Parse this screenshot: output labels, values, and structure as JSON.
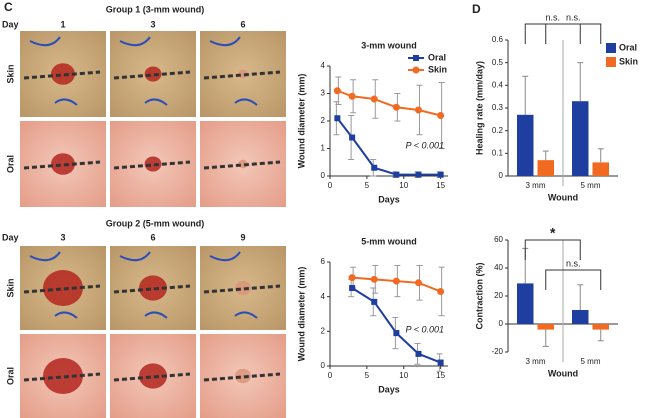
{
  "panel_labels": [
    "C",
    "D"
  ],
  "photo_panels": [
    {
      "title": "Group 1 (3-mm wound)",
      "day_label": "Day",
      "days": [
        "1",
        "3",
        "6"
      ],
      "rows": [
        "Skin",
        "Oral"
      ]
    },
    {
      "title": "Group 2 (5-mm wound)",
      "day_label": "Day",
      "days": [
        "3",
        "6",
        "9"
      ],
      "rows": [
        "Skin",
        "Oral"
      ]
    }
  ],
  "chart_data": [
    {
      "type": "line",
      "title": "3-mm wound",
      "x_label": "Days",
      "y_label": "Wound diameter (mm)",
      "x": [
        1,
        3,
        6,
        9,
        12,
        15
      ],
      "xlim": [
        0,
        16
      ],
      "xticks": [
        0,
        5,
        10,
        15
      ],
      "ylim": [
        0,
        4
      ],
      "yticks": [
        0,
        1,
        2,
        3,
        4
      ],
      "series": [
        {
          "name": "Oral",
          "color": "#1f3fa0",
          "marker": "square",
          "values": [
            2.1,
            1.4,
            0.3,
            0.05,
            0.05,
            0.05
          ],
          "errors": [
            0.6,
            0.8,
            0.3,
            0.1,
            0.1,
            0.1
          ]
        },
        {
          "name": "Skin",
          "color": "#f26a21",
          "marker": "circle",
          "values": [
            3.1,
            2.9,
            2.8,
            2.5,
            2.4,
            2.2
          ],
          "errors": [
            0.5,
            0.6,
            0.7,
            0.5,
            0.9,
            1.2
          ]
        }
      ],
      "legend": "upper right",
      "annotations": [
        "P < 0.001"
      ]
    },
    {
      "type": "line",
      "title": "5-mm wound",
      "x_label": "Days",
      "y_label": "Wound diameter (mm)",
      "x": [
        3,
        6,
        9,
        12,
        15
      ],
      "xlim": [
        0,
        16
      ],
      "xticks": [
        0,
        5,
        10,
        15
      ],
      "ylim": [
        0,
        6
      ],
      "yticks": [
        0,
        2,
        4,
        6
      ],
      "series": [
        {
          "name": "Oral",
          "color": "#1f3fa0",
          "marker": "square",
          "values": [
            4.5,
            3.7,
            1.9,
            0.7,
            0.2
          ],
          "errors": [
            0.5,
            0.8,
            0.9,
            0.6,
            0.5
          ]
        },
        {
          "name": "Skin",
          "color": "#f26a21",
          "marker": "circle",
          "values": [
            5.1,
            5.0,
            4.9,
            4.8,
            4.3
          ],
          "errors": [
            0.6,
            0.8,
            0.9,
            1.0,
            1.4
          ]
        }
      ],
      "annotations": [
        "P < 0.001"
      ]
    },
    {
      "type": "bar",
      "x_label": "Wound",
      "y_label": "Healing rate (mm/day)",
      "categories": [
        "3 mm",
        "5 mm"
      ],
      "ylim": [
        0,
        0.6
      ],
      "yticks": [
        0,
        0.1,
        0.2,
        0.3,
        0.4,
        0.5,
        0.6
      ],
      "series": [
        {
          "name": "Oral",
          "color": "#1f3fa0",
          "values": [
            0.27,
            0.33
          ],
          "errors": [
            0.17,
            0.17
          ]
        },
        {
          "name": "Skin",
          "color": "#f26a21",
          "values": [
            0.07,
            0.06
          ],
          "errors": [
            0.04,
            0.06
          ]
        }
      ],
      "legend": "upper right",
      "annotations": [
        "n.s.",
        "n.s."
      ]
    },
    {
      "type": "bar",
      "x_label": "Wound",
      "y_label": "Contraction (%)",
      "categories": [
        "3 mm",
        "5 mm"
      ],
      "ylim": [
        -20,
        60
      ],
      "yticks": [
        -20,
        0,
        20,
        40,
        60
      ],
      "series": [
        {
          "name": "Oral",
          "color": "#1f3fa0",
          "values": [
            29,
            10
          ],
          "errors": [
            25,
            18
          ]
        },
        {
          "name": "Skin",
          "color": "#f26a21",
          "values": [
            -4,
            -4
          ],
          "errors": [
            12,
            8
          ]
        }
      ],
      "annotations": [
        "*",
        "n.s."
      ]
    }
  ]
}
